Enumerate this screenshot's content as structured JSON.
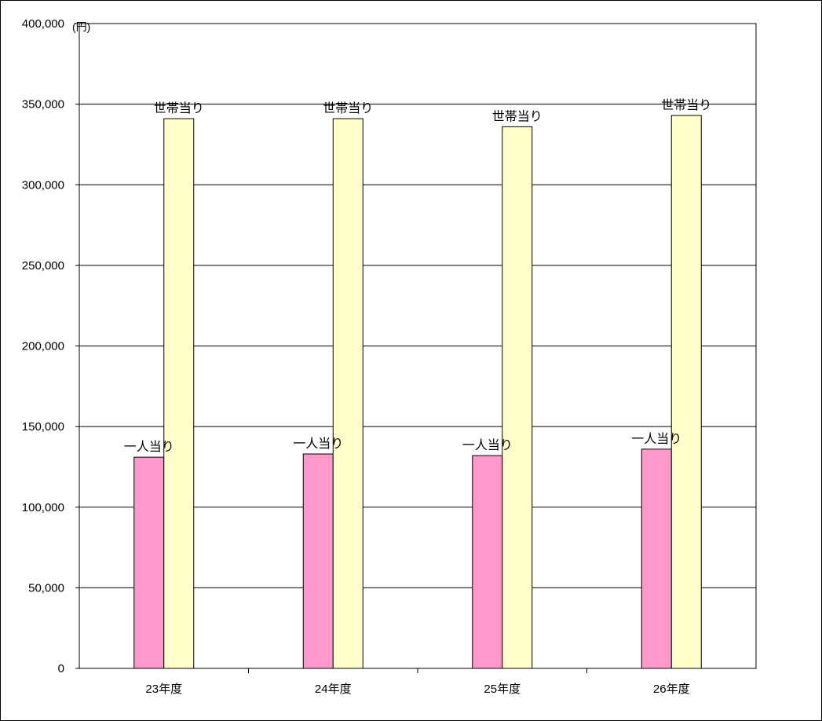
{
  "chart_data": {
    "type": "bar",
    "unit": "(円)",
    "categories": [
      "23年度",
      "24年度",
      "25年度",
      "26年度"
    ],
    "series": [
      {
        "label": "一人当り",
        "color": "#ff99cc",
        "values": [
          131000,
          133000,
          132000,
          136000
        ]
      },
      {
        "label": "世帯当り",
        "color": "#ffffcc",
        "values": [
          341000,
          341000,
          336000,
          343000
        ]
      }
    ],
    "yticks": [
      "0",
      "50,000",
      "100,000",
      "150,000",
      "200,000",
      "250,000",
      "300,000",
      "350,000",
      "400,000"
    ],
    "ylim": [
      0,
      400000
    ],
    "grid": true,
    "legend": "none"
  }
}
